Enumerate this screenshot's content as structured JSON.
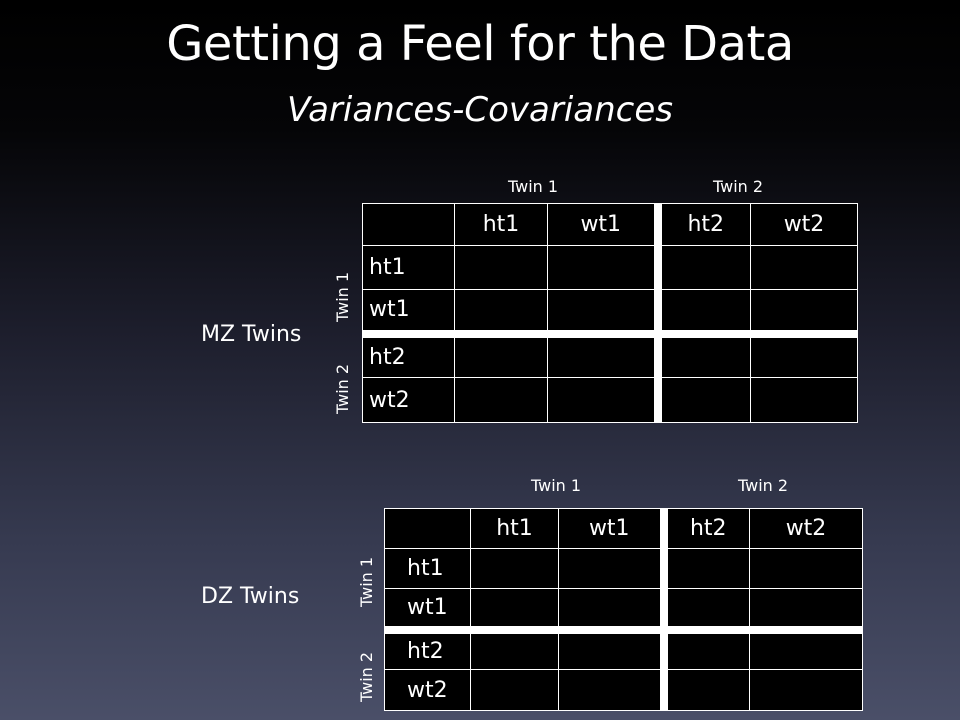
{
  "slide": {
    "title": "Getting a Feel for the Data",
    "subtitle": "Variances-Covariances"
  },
  "mz": {
    "label": "MZ Twins",
    "col_groups": [
      "Twin 1",
      "Twin 2"
    ],
    "row_groups": [
      "Twin 1",
      "Twin 2"
    ],
    "col_headers": [
      "ht1",
      "wt1",
      "ht2",
      "wt2"
    ],
    "row_headers": [
      "ht1",
      "wt1",
      "ht2",
      "wt2"
    ]
  },
  "dz": {
    "label": "DZ Twins",
    "col_groups": [
      "Twin 1",
      "Twin 2"
    ],
    "row_groups": [
      "Twin 1",
      "Twin 2"
    ],
    "col_headers": [
      "ht1",
      "wt1",
      "ht2",
      "wt2"
    ],
    "row_headers": [
      "ht1",
      "wt1",
      "ht2",
      "wt2"
    ]
  }
}
